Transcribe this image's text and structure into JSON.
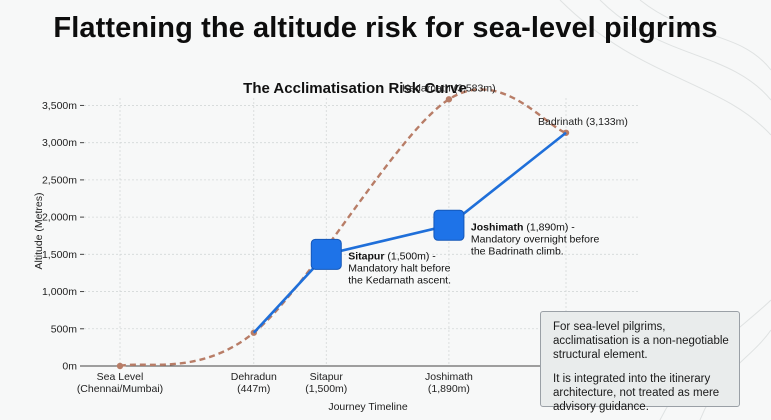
{
  "page_title": "Flattening the altitude risk for sea-level pilgrims",
  "note": {
    "paragraph1": "For sea-level pilgrims, acclimatisation is a non-negotiable structural element.",
    "paragraph2": "It is integrated into the itinerary architecture, not treated as mere advisory guidance."
  },
  "chart_data": {
    "type": "line",
    "title": "The Acclimatisation Risk Curve",
    "xlabel": "Journey Timeline",
    "ylabel": "Altitude (Metres)",
    "ylim": [
      0,
      3600
    ],
    "xlim": [
      0,
      4
    ],
    "grid": true,
    "y_ticks": [
      {
        "value": 0,
        "label": "0m"
      },
      {
        "value": 500,
        "label": "500m"
      },
      {
        "value": 1000,
        "label": "1,000m"
      },
      {
        "value": 1500,
        "label": "1,500m"
      },
      {
        "value": 2000,
        "label": "2,000m"
      },
      {
        "value": 2500,
        "label": "2,500m"
      },
      {
        "value": 3000,
        "label": "3,000m"
      },
      {
        "value": 3500,
        "label": "3,500m"
      }
    ],
    "x_ticks": [
      {
        "value": 0,
        "lines": [
          "Sea Level",
          "(Chennai/Mumbai)"
        ]
      },
      {
        "value": 1.2,
        "lines": [
          "Dehradun",
          "(447m)"
        ]
      },
      {
        "value": 1.85,
        "lines": [
          "Sitapur",
          "(1,500m)"
        ]
      },
      {
        "value": 2.95,
        "lines": [
          "Joshimath",
          "(1,890m)"
        ]
      }
    ],
    "series": [
      {
        "style": "dashed",
        "color": "#b87d67",
        "points": [
          {
            "x": 0,
            "y": 0
          },
          {
            "x": 1.2,
            "y": 447
          },
          {
            "x": 2.95,
            "y": 3583,
            "label": "Kedarnath (3,583m)"
          },
          {
            "x": 4,
            "y": 3133,
            "label": "Badrinath (3,133m)"
          }
        ]
      },
      {
        "style": "solid",
        "color": "#1f6fd9",
        "points": [
          {
            "x": 1.2,
            "y": 447
          },
          {
            "x": 1.85,
            "y": 1500
          },
          {
            "x": 2.95,
            "y": 1890
          },
          {
            "x": 4,
            "y": 3133
          }
        ]
      }
    ],
    "annotations": [
      {
        "x": 1.85,
        "y": 1500,
        "bold": "Sitapur",
        "rest": " (1,500m) -",
        "lines": [
          "Mandatory halt before",
          "the Kedarnath ascent."
        ]
      },
      {
        "x": 2.95,
        "y": 1890,
        "bold": "Joshimath",
        "rest": " (1,890m) -",
        "lines": [
          "Mandatory overnight before",
          "the Badrinath climb."
        ]
      }
    ]
  }
}
